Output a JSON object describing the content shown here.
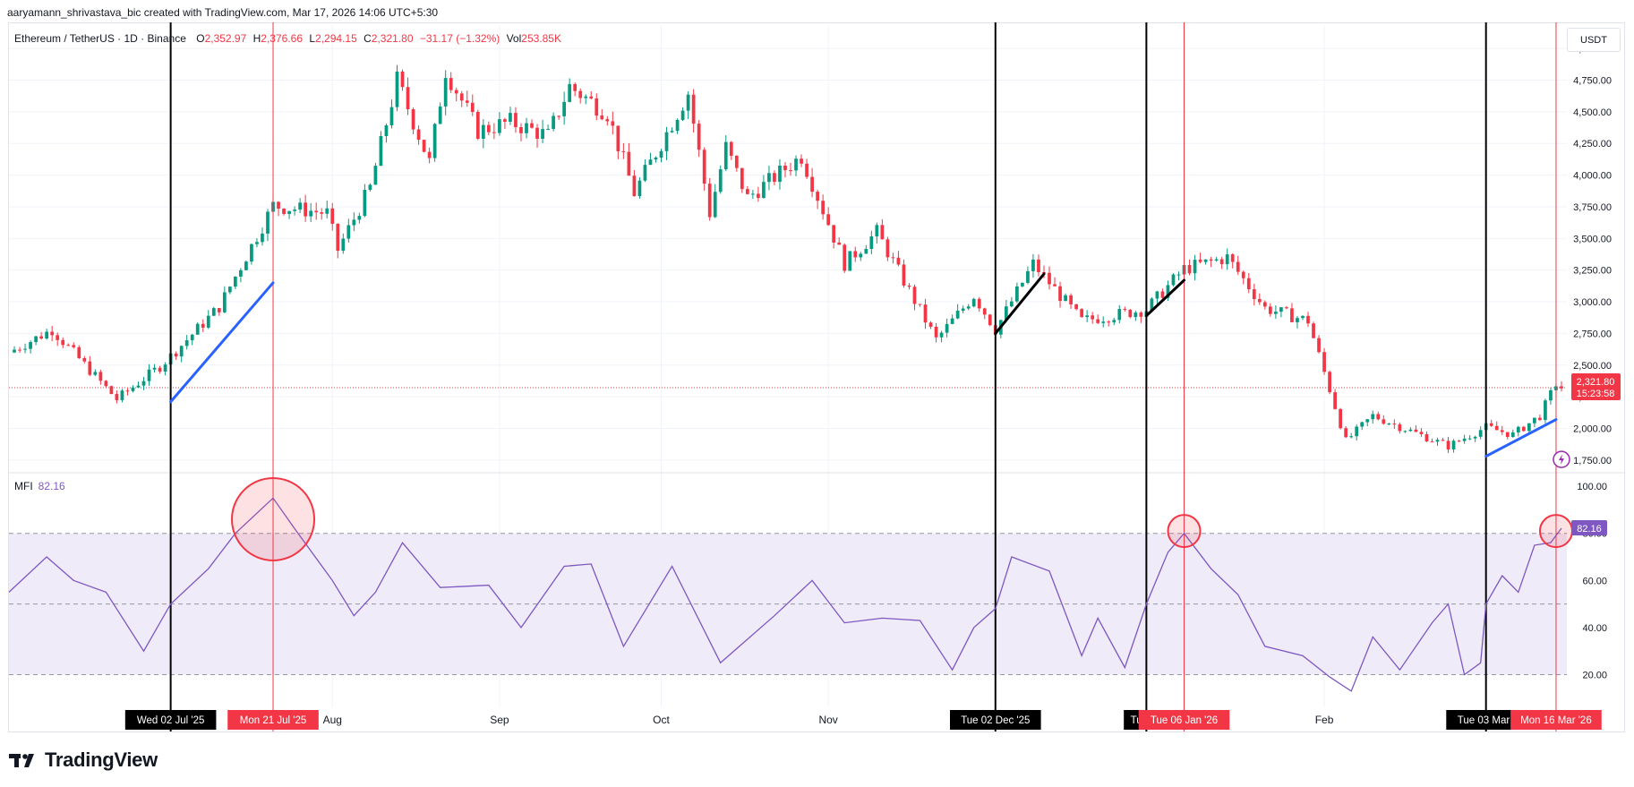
{
  "header": {
    "credit": "aaryamann_shrivastava_bic created with TradingView.com, Mar 17, 2026 14:06 UTC+5:30"
  },
  "legend": {
    "symbol": "Ethereum / TetherUS · 1D · Binance",
    "open_label": "O",
    "open": "2,352.97",
    "high_label": "H",
    "high": "2,376.66",
    "low_label": "L",
    "low": "2,294.15",
    "close_label": "C",
    "close": "2,321.80",
    "change": "−31.17 (−1.32%)",
    "vol_label": "Vol",
    "vol": "253.85K"
  },
  "currency": "USDT",
  "price_badge": {
    "price": "2,321.80",
    "countdown": "15:23:58"
  },
  "mfi": {
    "label": "MFI",
    "value": "82.16"
  },
  "brand": {
    "name": "TradingView",
    "logo_icon": "tradingview-logo-icon"
  },
  "colors": {
    "up": "#089981",
    "down": "#f23645",
    "mfi_line": "#7e57c2",
    "band_fill": "#efebf8",
    "trend_blue": "#2962ff"
  },
  "chart_data": [
    {
      "type": "candlestick",
      "title": "Ethereum / TetherUS · 1D · Binance",
      "y_axis_ticks": [
        "1,750.00",
        "2,000.00",
        "2,250.00",
        "2,500.00",
        "2,750.00",
        "3,000.00",
        "3,250.00",
        "3,500.00",
        "3,750.00",
        "4,000.00",
        "4,250.00",
        "4,500.00",
        "4,750.00",
        "5,000.00"
      ],
      "ylim": [
        1650,
        5100
      ],
      "x_tick_labels": [
        {
          "label": "Aug",
          "date": "2025-08-01"
        },
        {
          "label": "Sep",
          "date": "2025-09-01"
        },
        {
          "label": "Oct",
          "date": "2025-10-01"
        },
        {
          "label": "Nov",
          "date": "2025-11-01"
        },
        {
          "label": "Feb",
          "date": "2026-02-01"
        }
      ],
      "xlim": [
        "2025-06-02",
        "2026-03-18"
      ],
      "last_price": 2321.8,
      "close_path": [
        {
          "date": "2025-06-02",
          "close": 2600
        },
        {
          "date": "2025-06-10",
          "close": 2780
        },
        {
          "date": "2025-06-22",
          "close": 2230
        },
        {
          "date": "2025-06-30",
          "close": 2490
        },
        {
          "date": "2025-07-02",
          "close": 2570
        },
        {
          "date": "2025-07-11",
          "close": 2960
        },
        {
          "date": "2025-07-21",
          "close": 3760
        },
        {
          "date": "2025-07-31",
          "close": 3700
        },
        {
          "date": "2025-08-02",
          "close": 3410
        },
        {
          "date": "2025-08-08",
          "close": 3900
        },
        {
          "date": "2025-08-13",
          "close": 4750
        },
        {
          "date": "2025-08-19",
          "close": 4100
        },
        {
          "date": "2025-08-22",
          "close": 4830
        },
        {
          "date": "2025-08-28",
          "close": 4350
        },
        {
          "date": "2025-09-03",
          "close": 4420
        },
        {
          "date": "2025-09-10",
          "close": 4310
        },
        {
          "date": "2025-09-14",
          "close": 4700
        },
        {
          "date": "2025-09-21",
          "close": 4490
        },
        {
          "date": "2025-09-26",
          "close": 3860
        },
        {
          "date": "2025-10-06",
          "close": 4650
        },
        {
          "date": "2025-10-10",
          "close": 3700
        },
        {
          "date": "2025-10-13",
          "close": 4220
        },
        {
          "date": "2025-10-17",
          "close": 3820
        },
        {
          "date": "2025-10-27",
          "close": 4150
        },
        {
          "date": "2025-11-04",
          "close": 3300
        },
        {
          "date": "2025-11-10",
          "close": 3550
        },
        {
          "date": "2025-11-21",
          "close": 2700
        },
        {
          "date": "2025-11-28",
          "close": 3050
        },
        {
          "date": "2025-12-02",
          "close": 2780
        },
        {
          "date": "2025-12-09",
          "close": 3300
        },
        {
          "date": "2025-12-18",
          "close": 2850
        },
        {
          "date": "2025-12-30",
          "close": 2940
        },
        {
          "date": "2026-01-06",
          "close": 3260
        },
        {
          "date": "2026-01-14",
          "close": 3350
        },
        {
          "date": "2026-01-21",
          "close": 2950
        },
        {
          "date": "2026-01-29",
          "close": 2850
        },
        {
          "date": "2026-02-05",
          "close": 1900
        },
        {
          "date": "2026-02-10",
          "close": 2100
        },
        {
          "date": "2026-02-24",
          "close": 1860
        },
        {
          "date": "2026-03-03",
          "close": 2010
        },
        {
          "date": "2026-03-08",
          "close": 1950
        },
        {
          "date": "2026-03-13",
          "close": 2100
        },
        {
          "date": "2026-03-16",
          "close": 2352.97
        },
        {
          "date": "2026-03-17",
          "close": 2321.8
        }
      ],
      "trendlines": [
        {
          "color": "blue",
          "from": {
            "date": "2025-07-02",
            "price": 2210
          },
          "to": {
            "date": "2025-07-21",
            "price": 3150
          }
        },
        {
          "color": "black",
          "from": {
            "date": "2025-12-02",
            "price": 2750
          },
          "to": {
            "date": "2025-12-11",
            "price": 3220
          }
        },
        {
          "color": "black",
          "from": {
            "date": "2025-12-30",
            "price": 2890
          },
          "to": {
            "date": "2026-01-06",
            "price": 3170
          }
        },
        {
          "color": "blue",
          "from": {
            "date": "2026-03-03",
            "price": 1780
          },
          "to": {
            "date": "2026-03-16",
            "price": 2070
          }
        }
      ]
    },
    {
      "type": "line",
      "title": "MFI",
      "y_axis_ticks": [
        "20.00",
        "40.00",
        "60.00",
        "80.00",
        "100.00"
      ],
      "ylim": [
        8,
        105
      ],
      "bands": {
        "upper": 80,
        "middle": 50,
        "lower": 20
      },
      "series": [
        {
          "name": "MFI",
          "values": [
            {
              "date": "2025-06-02",
              "value": 55
            },
            {
              "date": "2025-06-09",
              "value": 70
            },
            {
              "date": "2025-06-14",
              "value": 60
            },
            {
              "date": "2025-06-20",
              "value": 55
            },
            {
              "date": "2025-06-27",
              "value": 30
            },
            {
              "date": "2025-07-02",
              "value": 50
            },
            {
              "date": "2025-07-09",
              "value": 65
            },
            {
              "date": "2025-07-14",
              "value": 80
            },
            {
              "date": "2025-07-21",
              "value": 95
            },
            {
              "date": "2025-07-25",
              "value": 82
            },
            {
              "date": "2025-08-01",
              "value": 60
            },
            {
              "date": "2025-08-05",
              "value": 45
            },
            {
              "date": "2025-08-09",
              "value": 55
            },
            {
              "date": "2025-08-14",
              "value": 76
            },
            {
              "date": "2025-08-21",
              "value": 57
            },
            {
              "date": "2025-08-30",
              "value": 58
            },
            {
              "date": "2025-09-05",
              "value": 40
            },
            {
              "date": "2025-09-13",
              "value": 66
            },
            {
              "date": "2025-09-18",
              "value": 67
            },
            {
              "date": "2025-09-24",
              "value": 32
            },
            {
              "date": "2025-10-03",
              "value": 66
            },
            {
              "date": "2025-10-12",
              "value": 25
            },
            {
              "date": "2025-10-22",
              "value": 45
            },
            {
              "date": "2025-10-29",
              "value": 60
            },
            {
              "date": "2025-11-04",
              "value": 42
            },
            {
              "date": "2025-11-11",
              "value": 44
            },
            {
              "date": "2025-11-18",
              "value": 43
            },
            {
              "date": "2025-11-24",
              "value": 22
            },
            {
              "date": "2025-11-28",
              "value": 40
            },
            {
              "date": "2025-12-02",
              "value": 48
            },
            {
              "date": "2025-12-05",
              "value": 70
            },
            {
              "date": "2025-12-12",
              "value": 64
            },
            {
              "date": "2025-12-18",
              "value": 28
            },
            {
              "date": "2025-12-21",
              "value": 44
            },
            {
              "date": "2025-12-26",
              "value": 23
            },
            {
              "date": "2025-12-30",
              "value": 50
            },
            {
              "date": "2026-01-03",
              "value": 72
            },
            {
              "date": "2026-01-06",
              "value": 80
            },
            {
              "date": "2026-01-11",
              "value": 65
            },
            {
              "date": "2026-01-16",
              "value": 54
            },
            {
              "date": "2026-01-21",
              "value": 32
            },
            {
              "date": "2026-01-28",
              "value": 28
            },
            {
              "date": "2026-02-02",
              "value": 19
            },
            {
              "date": "2026-02-06",
              "value": 13
            },
            {
              "date": "2026-02-10",
              "value": 36
            },
            {
              "date": "2026-02-15",
              "value": 22
            },
            {
              "date": "2026-02-21",
              "value": 42
            },
            {
              "date": "2026-02-24",
              "value": 50
            },
            {
              "date": "2026-02-27",
              "value": 20
            },
            {
              "date": "2026-03-02",
              "value": 25
            },
            {
              "date": "2026-03-03",
              "value": 50
            },
            {
              "date": "2026-03-06",
              "value": 62
            },
            {
              "date": "2026-03-09",
              "value": 55
            },
            {
              "date": "2026-03-12",
              "value": 75
            },
            {
              "date": "2026-03-15",
              "value": 76
            },
            {
              "date": "2026-03-17",
              "value": 82.16
            }
          ]
        }
      ],
      "highlight_circles": [
        {
          "date": "2025-07-21",
          "value": 86,
          "size": "large"
        },
        {
          "date": "2026-01-06",
          "value": 81,
          "size": "small"
        },
        {
          "date": "2026-03-16",
          "value": 81,
          "size": "small"
        }
      ]
    }
  ],
  "vertical_markers": [
    {
      "date": "2025-07-02",
      "color": "black",
      "label": "Wed 02 Jul '25"
    },
    {
      "date": "2025-07-21",
      "color": "red",
      "label": "Mon 21 Jul '25"
    },
    {
      "date": "2025-12-02",
      "color": "black",
      "label": "Tue 02 Dec '25"
    },
    {
      "date": "2025-12-30",
      "color": "black",
      "label": "Tue 30"
    },
    {
      "date": "2026-01-06",
      "color": "red",
      "label": "Tue 06 Jan '26"
    },
    {
      "date": "2026-03-03",
      "color": "black",
      "label": "Tue 03 Mar '"
    },
    {
      "date": "2026-03-16",
      "color": "red",
      "label": "Mon 16 Mar '26"
    }
  ]
}
